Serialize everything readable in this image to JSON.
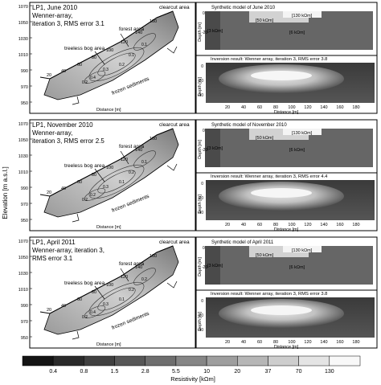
{
  "figure": {
    "ylabel": "Elevation [m a.s.l.]",
    "colorbar": {
      "label": "Resistivity [kΩm]",
      "ticks": [
        "0.4",
        "0.8",
        "1.5",
        "2.8",
        "5.5",
        "10",
        "20",
        "37",
        "70",
        "130"
      ],
      "colors": [
        "#141414",
        "#2a2a2a",
        "#404040",
        "#575757",
        "#6e6e6e",
        "#868686",
        "#9e9e9e",
        "#b6b6b6",
        "#cdcdcd",
        "#e4e4e4",
        "#f8f8f8"
      ]
    },
    "panels": [
      {
        "title": "LP1, June 2010",
        "subtitle1": "Wenner-array,",
        "subtitle2": "iteration 3, RMS error 3.1",
        "model_title": "Synthetic model of June 2010",
        "inversion_title": "Inversion result: Wenner array, iteration 3, RMS error 3.8",
        "contours": [
          "0.2",
          "0.1",
          "0.3",
          "0.4",
          "0.2",
          "0.1"
        ]
      },
      {
        "title": "LP1, November 2010",
        "subtitle1": "Wenner-array,",
        "subtitle2": "iteration 3, RMS error 2.5",
        "model_title": "Synthetic model of November 2010",
        "inversion_title": "Inversion result: Wenner array, iteration 3, RMS error 4.4",
        "contours": [
          "0.1",
          "0.2",
          "0.3",
          "0.2",
          "0.2",
          "0.1"
        ]
      },
      {
        "title": "LP1, April 2011",
        "subtitle1": "Wenner-array, iteration 3,",
        "subtitle2": "RMS error 3.1",
        "model_title": "Synthetic model of April 2011",
        "inversion_title": "Inversion result: Wenner array, iteration 3, RMS error 3.8",
        "contours": [
          "0.1",
          "0.2",
          "0.3",
          "0.4",
          "0.2",
          "0.2"
        ]
      }
    ],
    "labels": {
      "clearcut": "clearcut area",
      "forest": "forest area",
      "bog": "treeless bog area",
      "frozen": "frozen sediments",
      "distance": "Distance [m]",
      "depth": "Depth [m]",
      "k130": "[130 kΩm]",
      "k50": "[50 kΩm]",
      "k6": "[6 kΩm]",
      "k3": "[3 kΩm]"
    },
    "elev_ticks": [
      "1070",
      "1050",
      "1030",
      "1010",
      "990",
      "970",
      "950"
    ],
    "profile_dist_ticks": [
      "20",
      "40",
      "60",
      "80",
      "100",
      "120",
      "140",
      "160"
    ],
    "section_dist_ticks": [
      "20",
      "40",
      "60",
      "80",
      "100",
      "120",
      "140",
      "160",
      "180"
    ],
    "depth_ticks": [
      "0",
      "-20",
      "-40"
    ]
  }
}
